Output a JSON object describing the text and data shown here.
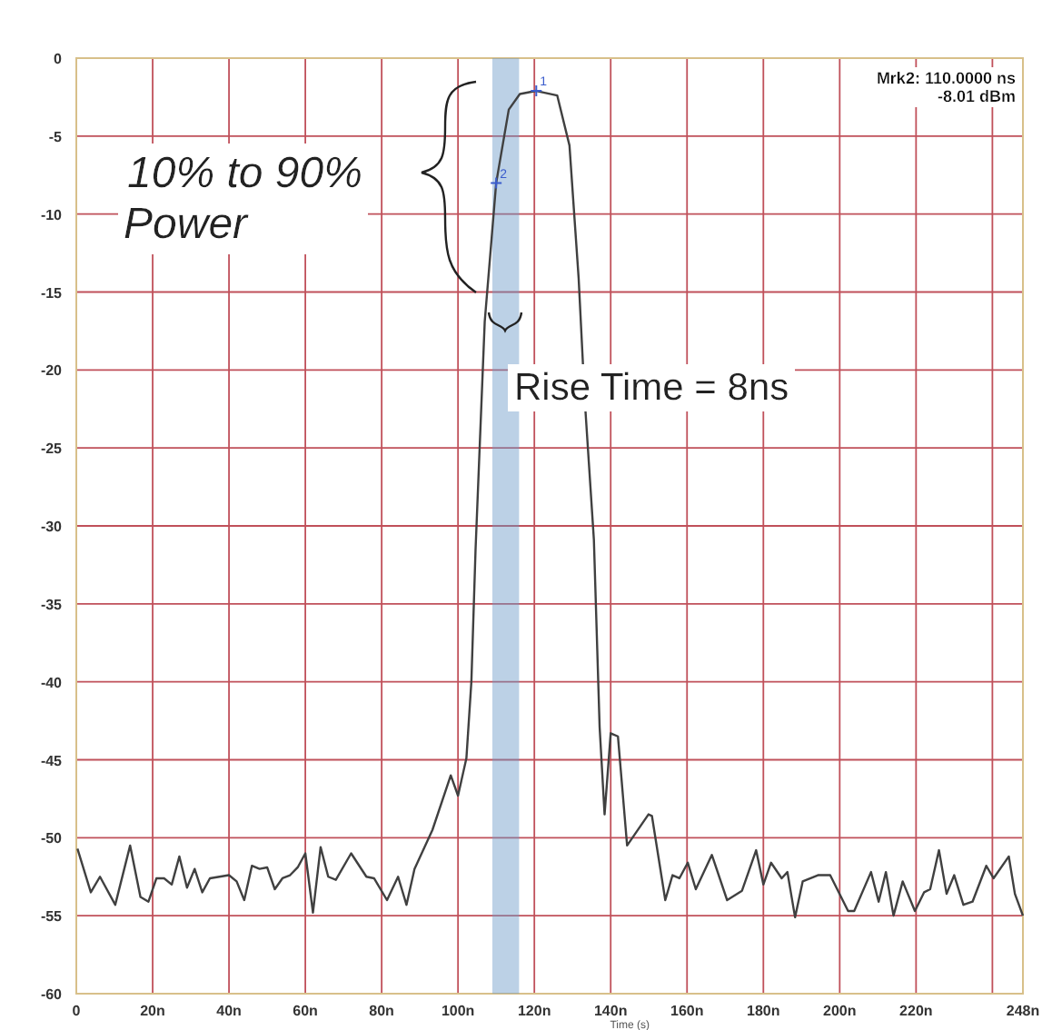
{
  "chart_data": {
    "type": "line",
    "xlabel": "Time (s)",
    "xlim": [
      0,
      248
    ],
    "xticks": [
      0,
      {
        "value": 20,
        "label": "20n"
      },
      {
        "value": 40,
        "label": "40n"
      },
      {
        "value": 60,
        "label": "60n"
      },
      {
        "value": 80,
        "label": "80n"
      },
      {
        "value": 100,
        "label": "100n"
      },
      {
        "value": 120,
        "label": "120n"
      },
      {
        "value": 140,
        "label": "140n"
      },
      {
        "value": 160,
        "label": "160n"
      },
      {
        "value": 180,
        "label": "180n"
      },
      {
        "value": 200,
        "label": "200n"
      },
      {
        "value": 220,
        "label": "220n"
      },
      {
        "value": 240,
        "label": null
      },
      {
        "value": 248,
        "label": "248n"
      }
    ],
    "ylim": [
      -60,
      0
    ],
    "yticks": [
      -60,
      -55,
      -50,
      -45,
      -40,
      -35,
      -30,
      -25,
      -20,
      -15,
      -10,
      -5,
      0
    ],
    "grid": true,
    "marker": "none",
    "line_style": "solid",
    "series": [
      {
        "color": "#404040",
        "x": [
          0.3,
          3.8,
          6.2,
          10.2,
          14.1,
          16.8,
          18.9,
          21,
          23,
          25,
          27,
          29,
          31,
          33,
          35,
          40,
          42,
          44,
          46,
          48,
          50,
          52,
          54,
          56,
          58,
          60,
          62,
          64,
          66,
          68,
          72,
          76,
          78,
          81.4,
          84.3,
          86.5,
          88.6,
          93.3,
          98.1,
          100,
          102.2,
          103.5,
          104.6,
          107,
          110,
          113.3,
          116.2,
          120.5,
          126,
          129.2,
          131.6,
          133.2,
          135.6,
          137.1,
          138.4,
          140,
          141.9,
          144.3,
          149.9,
          150.8,
          154.3,
          156.2,
          158,
          160.2,
          162.3,
          166.5,
          170.5,
          174.4,
          178.1,
          180,
          182,
          184.8,
          186.3,
          188.3,
          190.3,
          194.3,
          197.5,
          202.2,
          203.8,
          208.2,
          210.2,
          212.1,
          214.1,
          216.5,
          219.7,
          222.1,
          223.7,
          226,
          228,
          230,
          232.4,
          234.8,
          238.4,
          240.3,
          244.3,
          245.9,
          248
        ],
        "values": [
          -50.7,
          -53.5,
          -52.5,
          -54.3,
          -50.5,
          -53.8,
          -54.1,
          -52.6,
          -52.6,
          -53,
          -51.2,
          -53.2,
          -52,
          -53.5,
          -52.6,
          -52.4,
          -52.8,
          -54,
          -51.8,
          -52,
          -51.9,
          -53.3,
          -52.6,
          -52.4,
          -51.9,
          -51,
          -54.8,
          -50.6,
          -52.5,
          -52.7,
          -51,
          -52.5,
          -52.6,
          -54,
          -52.5,
          -54.3,
          -52,
          -49.5,
          -46,
          -47.3,
          -44.9,
          -40,
          -31.5,
          -16.9,
          -8,
          -3.3,
          -2.3,
          -2.1,
          -2.4,
          -5.6,
          -14.1,
          -21.9,
          -30.9,
          -42.9,
          -48.5,
          -43.3,
          -43.5,
          -50.5,
          -48.5,
          -48.6,
          -54,
          -52.4,
          -52.6,
          -51.6,
          -53.3,
          -51.1,
          -54,
          -53.4,
          -50.8,
          -53,
          -51.6,
          -52.6,
          -52.2,
          -55.1,
          -52.8,
          -52.4,
          -52.4,
          -54.7,
          -54.7,
          -52.2,
          -54.1,
          -52.2,
          -55,
          -52.8,
          -54.7,
          -53.5,
          -53.3,
          -50.8,
          -53.6,
          -52.4,
          -54.3,
          -54.1,
          -51.8,
          -52.6,
          -51.2,
          -53.6,
          -55
        ]
      }
    ],
    "bands": [
      {
        "axis": "x",
        "from": 109,
        "to": 116,
        "color": "#6a9ac8"
      }
    ],
    "annotations": [
      {
        "text": "1",
        "x": 120.5,
        "y": -2.1
      },
      {
        "text": "2",
        "x": 110,
        "y": -8.01
      },
      "Mrk2: 110.0000 ns\n-8.01 dBm",
      "10% to 90%\nPower",
      "Rise Time = 8ns"
    ]
  }
}
